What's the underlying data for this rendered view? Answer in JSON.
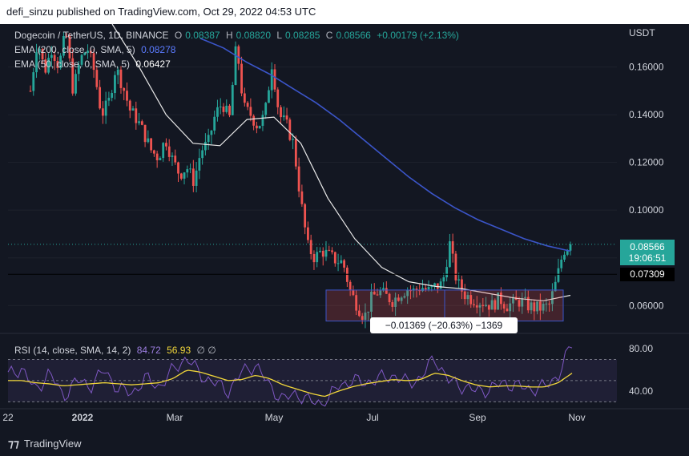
{
  "header": {
    "published": "defi_sinzu published on TradingView.com, Oct 29, 2022 04:53 UTC"
  },
  "legend": {
    "symbol": "Dogecoin / TetherUS, 1D, BINANCE",
    "o_label": "O",
    "o": "0.08387",
    "h_label": "H",
    "h": "0.08820",
    "l_label": "L",
    "l": "0.08285",
    "c_label": "C",
    "c": "0.08566",
    "change": "+0.00179 (+2.13%)",
    "ema200_label": "EMA (200, close, 0, SMA, 5)",
    "ema200_value": "0.08278",
    "ema50_label": "EMA (50, close, 0, SMA, 5)",
    "ema50_value": "0.06427"
  },
  "rsi_legend": {
    "label": "RSI (14, close, SMA, 14, 2)",
    "rsi": "84.72",
    "sma": "56.93",
    "extra": "∅ ∅"
  },
  "currency": "USDT",
  "price_tag": {
    "price": "0.08566",
    "countdown": "19:06:51"
  },
  "line_tag": "0.07309",
  "measure_label": "−0.01369 (−20.63%) −1369",
  "footer": {
    "brand": "TradingView"
  },
  "colors": {
    "up": "#26a69a",
    "down": "#ef5350",
    "ema200": "#3b55c9",
    "ema50": "#e8e8e8",
    "rsi": "#7e57c2",
    "rsi_sma": "#f2d73a"
  },
  "chart_data": [
    {
      "type": "candlestick",
      "title": "Dogecoin / TetherUS, 1D, BINANCE",
      "ylim": [
        0.049,
        0.178
      ],
      "yticks": [
        "0.06000",
        "0.08000",
        "0.10000",
        "0.12000",
        "0.14000",
        "0.16000"
      ],
      "xticks": [
        "22",
        "2022",
        "Mar",
        "May",
        "Jul",
        "Sep",
        "Nov"
      ],
      "close_path": [
        0.15,
        0.172,
        0.158,
        0.168,
        0.16,
        0.175,
        0.15,
        0.163,
        0.168,
        0.158,
        0.14,
        0.145,
        0.16,
        0.152,
        0.142,
        0.138,
        0.132,
        0.125,
        0.122,
        0.13,
        0.121,
        0.115,
        0.118,
        0.112,
        0.125,
        0.128,
        0.14,
        0.145,
        0.138,
        0.17,
        0.143,
        0.14,
        0.135,
        0.14,
        0.162,
        0.14,
        0.136,
        0.128,
        0.105,
        0.085,
        0.08,
        0.083,
        0.081,
        0.079,
        0.078,
        0.066,
        0.06,
        0.055,
        0.063,
        0.066,
        0.064,
        0.062,
        0.065,
        0.067,
        0.066,
        0.068,
        0.066,
        0.068,
        0.069,
        0.086,
        0.07,
        0.065,
        0.063,
        0.062,
        0.061,
        0.06,
        0.063,
        0.06,
        0.061,
        0.062,
        0.06,
        0.059,
        0.059,
        0.06,
        0.07,
        0.083,
        0.0857
      ],
      "ema200_path": [
        0.172,
        0.168,
        0.162,
        0.157,
        0.151,
        0.145,
        0.138,
        0.13,
        0.122,
        0.114,
        0.107,
        0.101,
        0.096,
        0.092,
        0.088,
        0.085,
        0.0828
      ],
      "ema50_path": [
        0.178,
        0.16,
        0.14,
        0.128,
        0.127,
        0.138,
        0.139,
        0.128,
        0.105,
        0.088,
        0.076,
        0.07,
        0.068,
        0.067,
        0.065,
        0.063,
        0.062,
        0.0643
      ],
      "reference_line": 0.07309,
      "current_price": 0.08566,
      "measure_box": {
        "from": 0.0665,
        "to": 0.0535,
        "change": "−0.01369 (−20.63%) −1369"
      }
    },
    {
      "type": "line",
      "title": "RSI (14, close, SMA, 14, 2)",
      "ylim": [
        25,
        90
      ],
      "yticks": [
        "40.00",
        "80.00"
      ],
      "bands": [
        30,
        50,
        70
      ],
      "series": [
        {
          "name": "RSI",
          "values": [
            55,
            62,
            40,
            58,
            35,
            50,
            45,
            60,
            42,
            38,
            52,
            44,
            60,
            72,
            55,
            48,
            40,
            58,
            65,
            45,
            32,
            38,
            30,
            28,
            45,
            50,
            48,
            52,
            55,
            48,
            52,
            72,
            50,
            45,
            40,
            42,
            48,
            45,
            42,
            44,
            55,
            85
          ]
        },
        {
          "name": "SMA",
          "values": [
            50,
            50,
            48,
            47,
            45,
            46,
            47,
            48,
            47,
            46,
            47,
            48,
            52,
            60,
            58,
            54,
            50,
            51,
            55,
            52,
            46,
            42,
            38,
            35,
            40,
            44,
            47,
            49,
            51,
            50,
            51,
            57,
            55,
            50,
            46,
            44,
            45,
            45,
            44,
            44,
            48,
            57
          ]
        }
      ]
    }
  ]
}
